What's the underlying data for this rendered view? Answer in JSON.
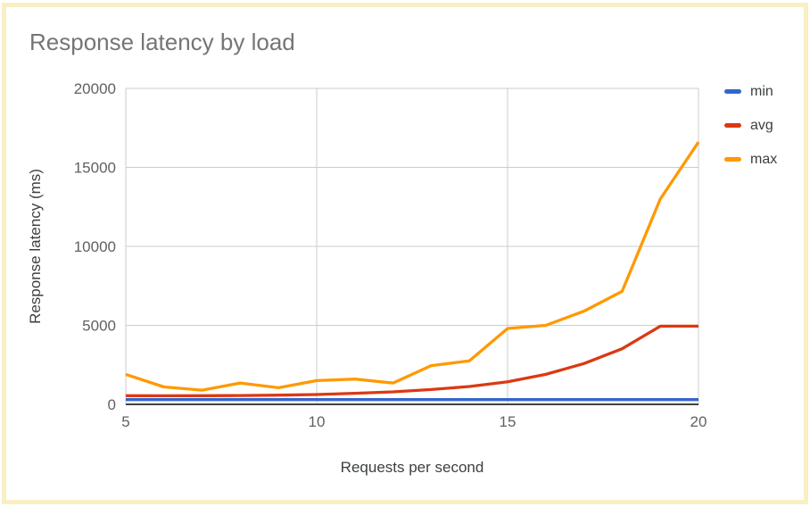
{
  "page": {
    "border_color": "#f9efc4",
    "background_color": "#ffffff"
  },
  "chart": {
    "title": "Response latency by load",
    "x_axis_title": "Requests per second",
    "y_axis_title": "Response latency (ms)"
  },
  "colors": {
    "gridline": "#cccccc",
    "baseline": "#424242",
    "tick_text": "#616161",
    "axis_title_text": "#3c4043",
    "title_text": "#757575"
  },
  "chart_data": {
    "type": "line",
    "title": "Response latency by load",
    "xlabel": "Requests per second",
    "ylabel": "Response latency (ms)",
    "x": [
      5,
      6,
      7,
      8,
      9,
      10,
      11,
      12,
      13,
      14,
      15,
      16,
      17,
      18,
      19,
      20
    ],
    "series": [
      {
        "name": "min",
        "color": "#3366cc",
        "values": [
          300,
          300,
          300,
          300,
          300,
          300,
          300,
          300,
          300,
          300,
          300,
          300,
          300,
          300,
          300,
          300
        ]
      },
      {
        "name": "avg",
        "color": "#dc3912",
        "values": [
          550,
          540,
          550,
          560,
          580,
          620,
          700,
          790,
          940,
          1130,
          1430,
          1900,
          2580,
          3520,
          4950,
          4950
        ]
      },
      {
        "name": "max",
        "color": "#ff9900",
        "values": [
          1900,
          1100,
          900,
          1350,
          1050,
          1500,
          1600,
          1350,
          2450,
          2750,
          4800,
          5000,
          5900,
          7150,
          13000,
          16600
        ]
      }
    ],
    "xlim": [
      5,
      20
    ],
    "ylim": [
      0,
      20000
    ],
    "x_ticks": [
      5,
      10,
      15,
      20
    ],
    "y_ticks": [
      0,
      5000,
      10000,
      15000,
      20000
    ],
    "grid": true,
    "legend_position": "right"
  }
}
